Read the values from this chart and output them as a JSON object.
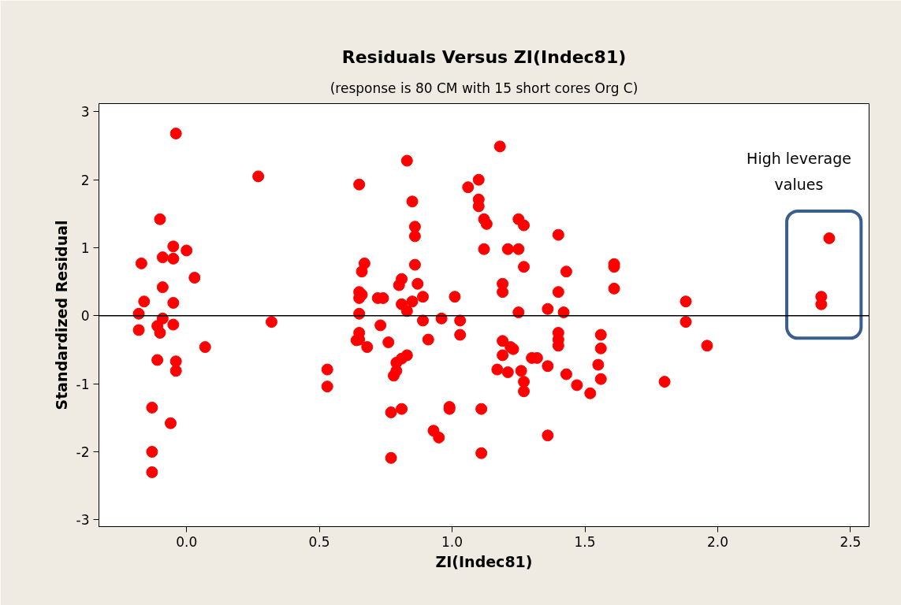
{
  "chart_data": {
    "type": "scatter",
    "title": "Residuals Versus ZI(Indec81)",
    "subtitle": "(response is 80 CM with 15 short cores Org C)",
    "xlabel": "ZI(Indec81)",
    "ylabel": "Standardized Residual",
    "xlim": [
      -0.33,
      2.57
    ],
    "ylim": [
      -3.1,
      3.12
    ],
    "xticks": [
      {
        "value": 0,
        "label": "0.0"
      },
      0.5,
      {
        "value": 1,
        "label": "1.0"
      },
      1.5,
      {
        "value": 2,
        "label": "2.0"
      },
      2.5
    ],
    "yticks": [
      -3,
      -2,
      -1,
      0,
      1,
      2,
      3
    ],
    "marker": "circle",
    "grid": false,
    "ref_lines": [
      {
        "axis": "y",
        "value": 0,
        "color": "#000000"
      }
    ],
    "annotations": [
      "High leverage values"
    ],
    "series": [
      {
        "color": "#ff0000",
        "x": [
          -0.04,
          0.27,
          -0.1,
          -0.05,
          0.0,
          -0.09,
          -0.05,
          -0.17,
          0.03,
          -0.09,
          -0.16,
          -0.05,
          -0.18,
          -0.09,
          -0.11,
          -0.05,
          -0.18,
          -0.1,
          0.32,
          0.07,
          -0.11,
          -0.04,
          -0.04,
          0.53,
          0.53,
          -0.13,
          -0.06,
          -0.13,
          -0.13,
          1.18,
          0.83,
          0.65,
          1.1,
          1.06,
          0.85,
          1.1,
          1.1,
          1.12,
          1.13,
          0.86,
          0.86,
          1.25,
          1.27,
          1.4,
          1.12,
          1.21,
          1.25,
          0.67,
          0.66,
          0.86,
          1.27,
          1.43,
          0.81,
          0.8,
          0.87,
          1.19,
          1.19,
          1.4,
          0.65,
          0.66,
          0.65,
          0.72,
          0.74,
          0.89,
          1.01,
          0.85,
          0.81,
          0.83,
          0.65,
          1.25,
          1.36,
          1.42,
          0.89,
          0.96,
          1.03,
          0.73,
          1.03,
          0.65,
          0.64,
          0.65,
          0.68,
          0.76,
          0.91,
          1.4,
          1.4,
          1.4,
          1.19,
          1.22,
          1.23,
          1.19,
          0.83,
          0.81,
          0.79,
          0.79,
          0.78,
          1.17,
          1.21,
          1.26,
          1.27,
          1.27,
          1.3,
          1.32,
          1.36,
          1.43,
          1.47,
          0.77,
          0.81,
          0.99,
          0.99,
          1.11,
          0.93,
          0.95,
          1.36,
          0.77,
          1.11,
          1.61,
          1.61,
          1.61,
          1.56,
          1.56,
          1.55,
          1.56,
          1.52,
          1.88,
          1.88,
          1.96,
          1.8,
          2.42,
          2.39,
          2.39
        ],
        "values": [
          2.68,
          2.05,
          1.42,
          1.02,
          0.96,
          0.86,
          0.84,
          0.77,
          0.56,
          0.42,
          0.21,
          0.19,
          0.03,
          -0.04,
          -0.15,
          -0.13,
          -0.21,
          -0.25,
          -0.09,
          -0.46,
          -0.65,
          -0.67,
          -0.81,
          -0.79,
          -1.04,
          -1.35,
          -1.58,
          -2.0,
          -2.3,
          2.49,
          2.28,
          1.93,
          2.0,
          1.89,
          1.68,
          1.71,
          1.61,
          1.42,
          1.35,
          1.31,
          1.17,
          1.42,
          1.33,
          1.19,
          0.98,
          0.98,
          0.98,
          0.77,
          0.65,
          0.75,
          0.72,
          0.65,
          0.54,
          0.45,
          0.47,
          0.47,
          0.35,
          0.35,
          0.35,
          0.31,
          0.26,
          0.26,
          0.26,
          0.28,
          0.28,
          0.21,
          0.17,
          0.07,
          0.03,
          0.05,
          0.1,
          0.05,
          -0.07,
          -0.04,
          -0.07,
          -0.14,
          -0.28,
          -0.25,
          -0.36,
          -0.35,
          -0.46,
          -0.39,
          -0.35,
          -0.25,
          -0.35,
          -0.44,
          -0.37,
          -0.46,
          -0.49,
          -0.58,
          -0.58,
          -0.63,
          -0.69,
          -0.81,
          -0.88,
          -0.79,
          -0.83,
          -0.81,
          -0.97,
          -1.11,
          -0.62,
          -0.62,
          -0.74,
          -0.86,
          -1.02,
          -1.42,
          -1.37,
          -1.34,
          -1.37,
          -1.37,
          -1.69,
          -1.79,
          -1.76,
          -2.09,
          -2.02,
          0.76,
          0.72,
          0.4,
          -0.28,
          -0.48,
          -0.72,
          -0.93,
          -1.14,
          0.21,
          -0.09,
          -0.44,
          -0.97,
          1.14,
          0.28,
          0.17
        ]
      }
    ]
  }
}
